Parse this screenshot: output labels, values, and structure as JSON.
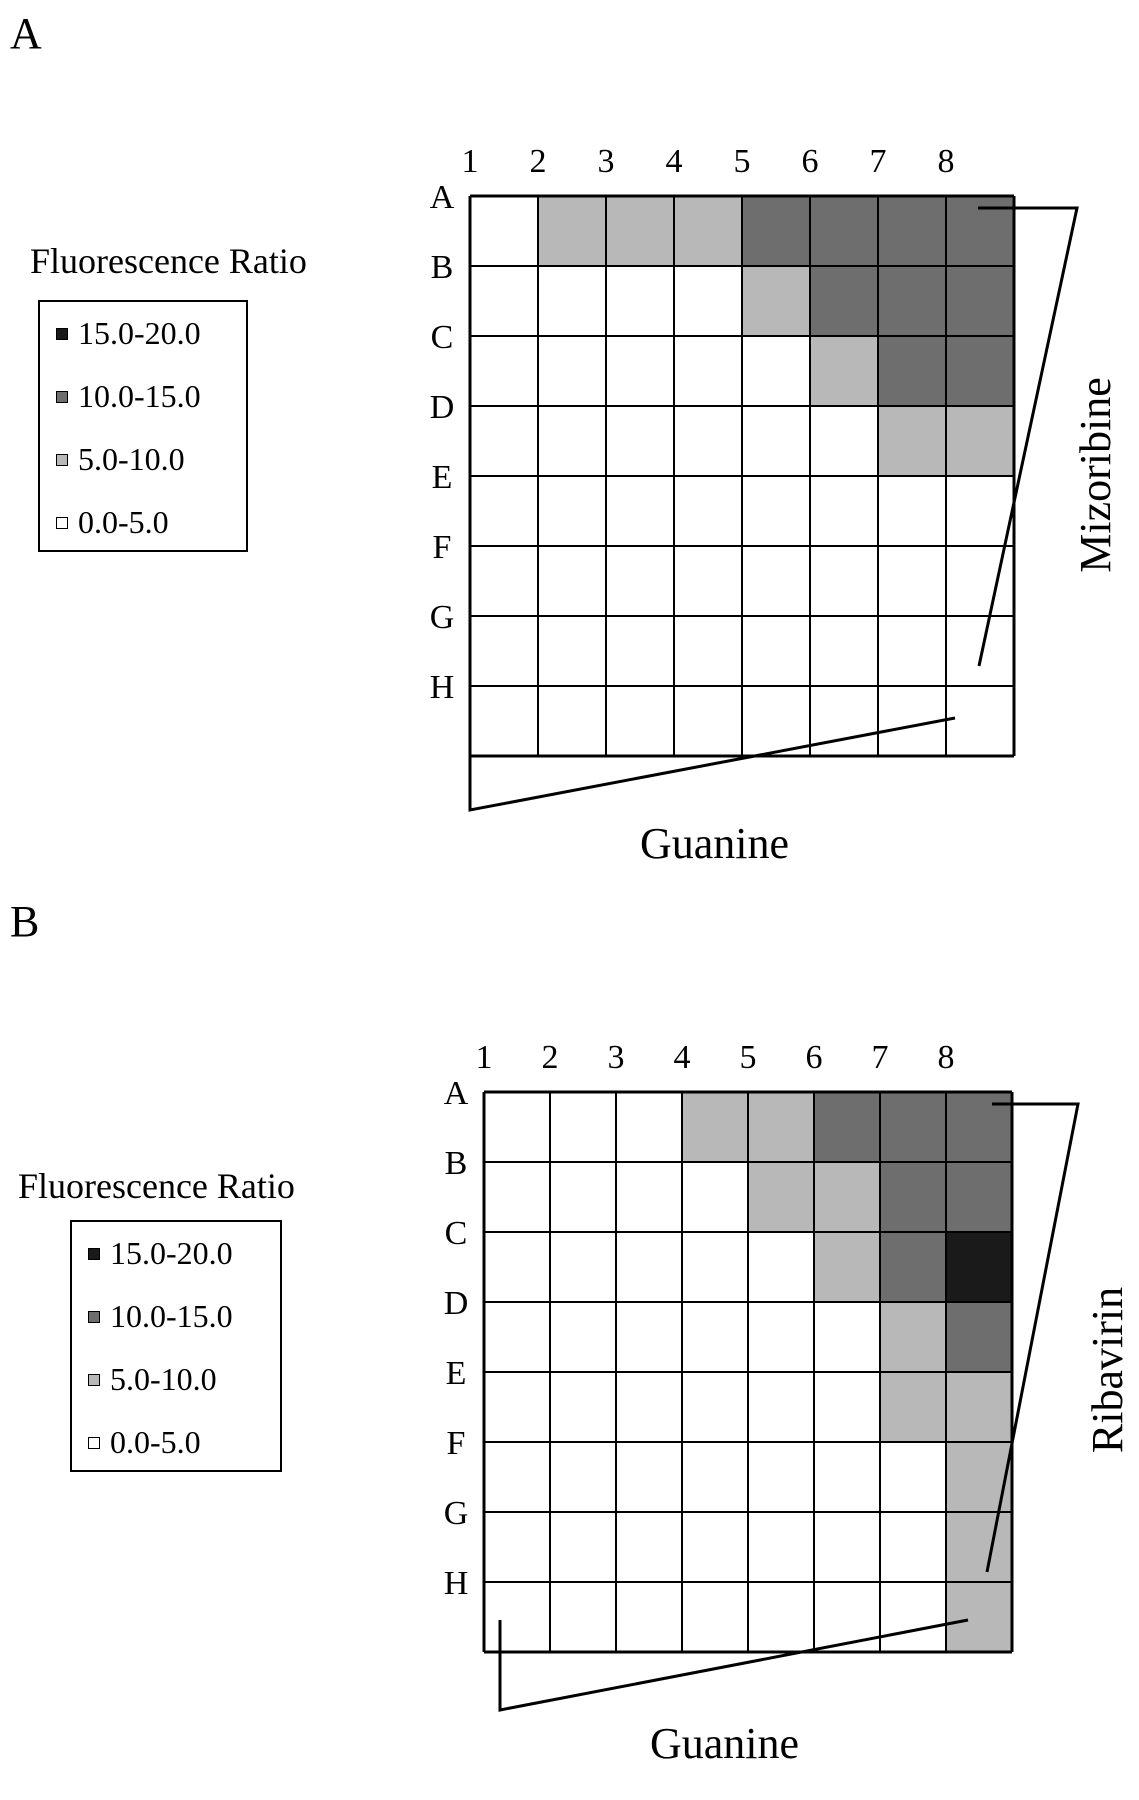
{
  "panels": [
    {
      "label": "A",
      "legend": {
        "title": "Fluorescence Ratio",
        "items": [
          {
            "label": "15.0-20.0",
            "color": "#1a1a1a"
          },
          {
            "label": "10.0-15.0",
            "color": "#6e6e6e"
          },
          {
            "label": "5.0-10.0",
            "color": "#b8b8b8"
          },
          {
            "label": "0.0-5.0",
            "color": "#ffffff"
          }
        ]
      },
      "row_drug": "Mizoribine",
      "column_drug": "Guanine"
    },
    {
      "label": "B",
      "legend": {
        "title": "Fluorescence Ratio",
        "items": [
          {
            "label": "15.0-20.0",
            "color": "#1a1a1a"
          },
          {
            "label": "10.0-15.0",
            "color": "#6e6e6e"
          },
          {
            "label": "5.0-10.0",
            "color": "#b8b8b8"
          },
          {
            "label": "0.0-5.0",
            "color": "#ffffff"
          }
        ]
      },
      "row_drug": "Ribavirin",
      "column_drug": "Guanine"
    }
  ],
  "chart_data": [
    {
      "type": "heatmap",
      "title": "",
      "xlabel": "Guanine",
      "ylabel": "Mizoribine",
      "columns": [
        "1",
        "2",
        "3",
        "4",
        "5",
        "6",
        "7",
        "8"
      ],
      "rows": [
        "A",
        "B",
        "C",
        "D",
        "E",
        "F",
        "G",
        "H"
      ],
      "levels": [
        "0.0-5.0",
        "5.0-10.0",
        "10.0-15.0",
        "15.0-20.0"
      ],
      "grid": [
        [
          0,
          1,
          1,
          1,
          2,
          2,
          2,
          2
        ],
        [
          0,
          0,
          0,
          0,
          1,
          2,
          2,
          2
        ],
        [
          0,
          0,
          0,
          0,
          0,
          1,
          2,
          2
        ],
        [
          0,
          0,
          0,
          0,
          0,
          0,
          1,
          1
        ],
        [
          0,
          0,
          0,
          0,
          0,
          0,
          0,
          0
        ],
        [
          0,
          0,
          0,
          0,
          0,
          0,
          0,
          0
        ],
        [
          0,
          0,
          0,
          0,
          0,
          0,
          0,
          0
        ],
        [
          0,
          0,
          0,
          0,
          0,
          0,
          0,
          0
        ]
      ]
    },
    {
      "type": "heatmap",
      "title": "",
      "xlabel": "Guanine",
      "ylabel": "Ribavirin",
      "columns": [
        "1",
        "2",
        "3",
        "4",
        "5",
        "6",
        "7",
        "8"
      ],
      "rows": [
        "A",
        "B",
        "C",
        "D",
        "E",
        "F",
        "G",
        "H"
      ],
      "levels": [
        "0.0-5.0",
        "5.0-10.0",
        "10.0-15.0",
        "15.0-20.0"
      ],
      "grid": [
        [
          0,
          0,
          0,
          1,
          1,
          2,
          2,
          2
        ],
        [
          0,
          0,
          0,
          0,
          1,
          1,
          2,
          2
        ],
        [
          0,
          0,
          0,
          0,
          0,
          1,
          2,
          3
        ],
        [
          0,
          0,
          0,
          0,
          0,
          0,
          1,
          2
        ],
        [
          0,
          0,
          0,
          0,
          0,
          0,
          1,
          1
        ],
        [
          0,
          0,
          0,
          0,
          0,
          0,
          0,
          1
        ],
        [
          0,
          0,
          0,
          0,
          0,
          0,
          0,
          1
        ],
        [
          0,
          0,
          0,
          0,
          0,
          0,
          0,
          1
        ]
      ]
    }
  ]
}
